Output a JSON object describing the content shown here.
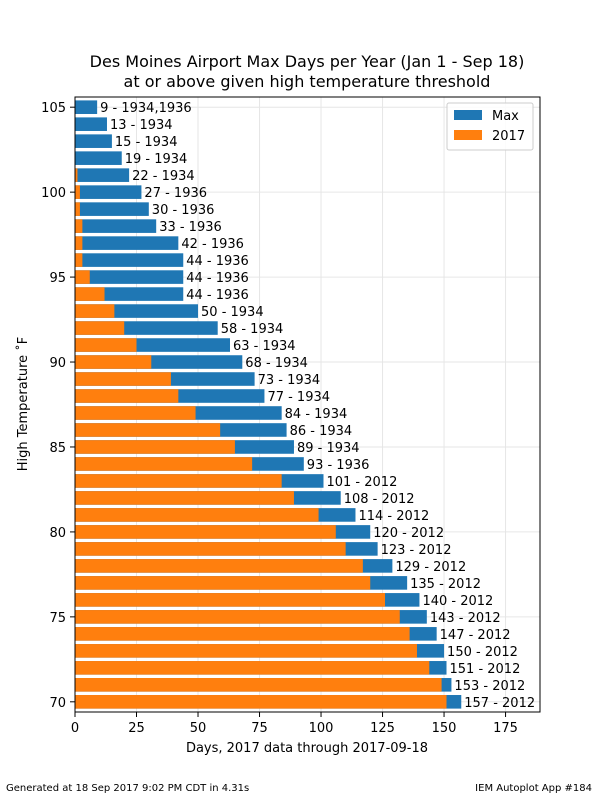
{
  "chart_data": {
    "type": "bar",
    "orientation": "horizontal",
    "title": "Des Moines Airport Max Days per Year (Jan 1 - Sep 18)",
    "subtitle": "at or above given high temperature threshold",
    "xlabel": "Days, 2017 data through 2017-09-18",
    "ylabel": "High Temperature ˚F",
    "xlim": [
      0,
      189
    ],
    "ylim": [
      69.4,
      105.6
    ],
    "xticks": [
      0,
      25,
      50,
      75,
      100,
      125,
      150,
      175
    ],
    "yticks": [
      70,
      75,
      80,
      85,
      90,
      95,
      100,
      105
    ],
    "grid": true,
    "legend_position": "top-right",
    "thresholds": [
      70,
      71,
      72,
      73,
      74,
      75,
      76,
      77,
      78,
      79,
      80,
      81,
      82,
      83,
      84,
      85,
      86,
      87,
      88,
      89,
      90,
      91,
      92,
      93,
      94,
      95,
      96,
      97,
      98,
      99,
      100,
      101,
      102,
      103,
      104,
      105
    ],
    "series": [
      {
        "name": "Max",
        "color": "#1f77b4",
        "values": [
          157,
          153,
          151,
          150,
          147,
          143,
          140,
          135,
          129,
          123,
          120,
          114,
          108,
          101,
          93,
          89,
          86,
          84,
          77,
          73,
          68,
          63,
          58,
          50,
          44,
          44,
          44,
          42,
          33,
          30,
          27,
          22,
          19,
          15,
          13,
          9
        ],
        "labels": [
          "157 - 2012",
          "153 - 2012",
          "151 - 2012",
          "150 - 2012",
          "147 - 2012",
          "143 - 2012",
          "140 - 2012",
          "135 - 2012",
          "129 - 2012",
          "123 - 2012",
          "120 - 2012",
          "114 - 2012",
          "108 - 2012",
          "101 - 2012",
          "93 - 1936",
          "89 - 1934",
          "86 - 1934",
          "84 - 1934",
          "77 - 1934",
          "73 - 1934",
          "68 - 1934",
          "63 - 1934",
          "58 - 1934",
          "50 - 1934",
          "44 - 1936",
          "44 - 1936",
          "44 - 1936",
          "42 - 1936",
          "33 - 1936",
          "30 - 1936",
          "27 - 1936",
          "22 - 1934",
          "19 - 1934",
          "15 - 1934",
          "13 - 1934",
          "9 - 1934,1936"
        ]
      },
      {
        "name": "2017",
        "color": "#ff7f0e",
        "values": [
          151,
          149,
          144,
          139,
          136,
          132,
          126,
          120,
          117,
          110,
          106,
          99,
          89,
          84,
          72,
          65,
          59,
          49,
          42,
          39,
          31,
          25,
          20,
          16,
          12,
          6,
          3,
          3,
          3,
          2,
          2,
          1,
          0,
          0,
          0,
          0
        ]
      }
    ]
  },
  "footer": {
    "left": "Generated at 18 Sep 2017 9:02 PM CDT in 4.31s",
    "right": "IEM Autoplot App #184"
  }
}
